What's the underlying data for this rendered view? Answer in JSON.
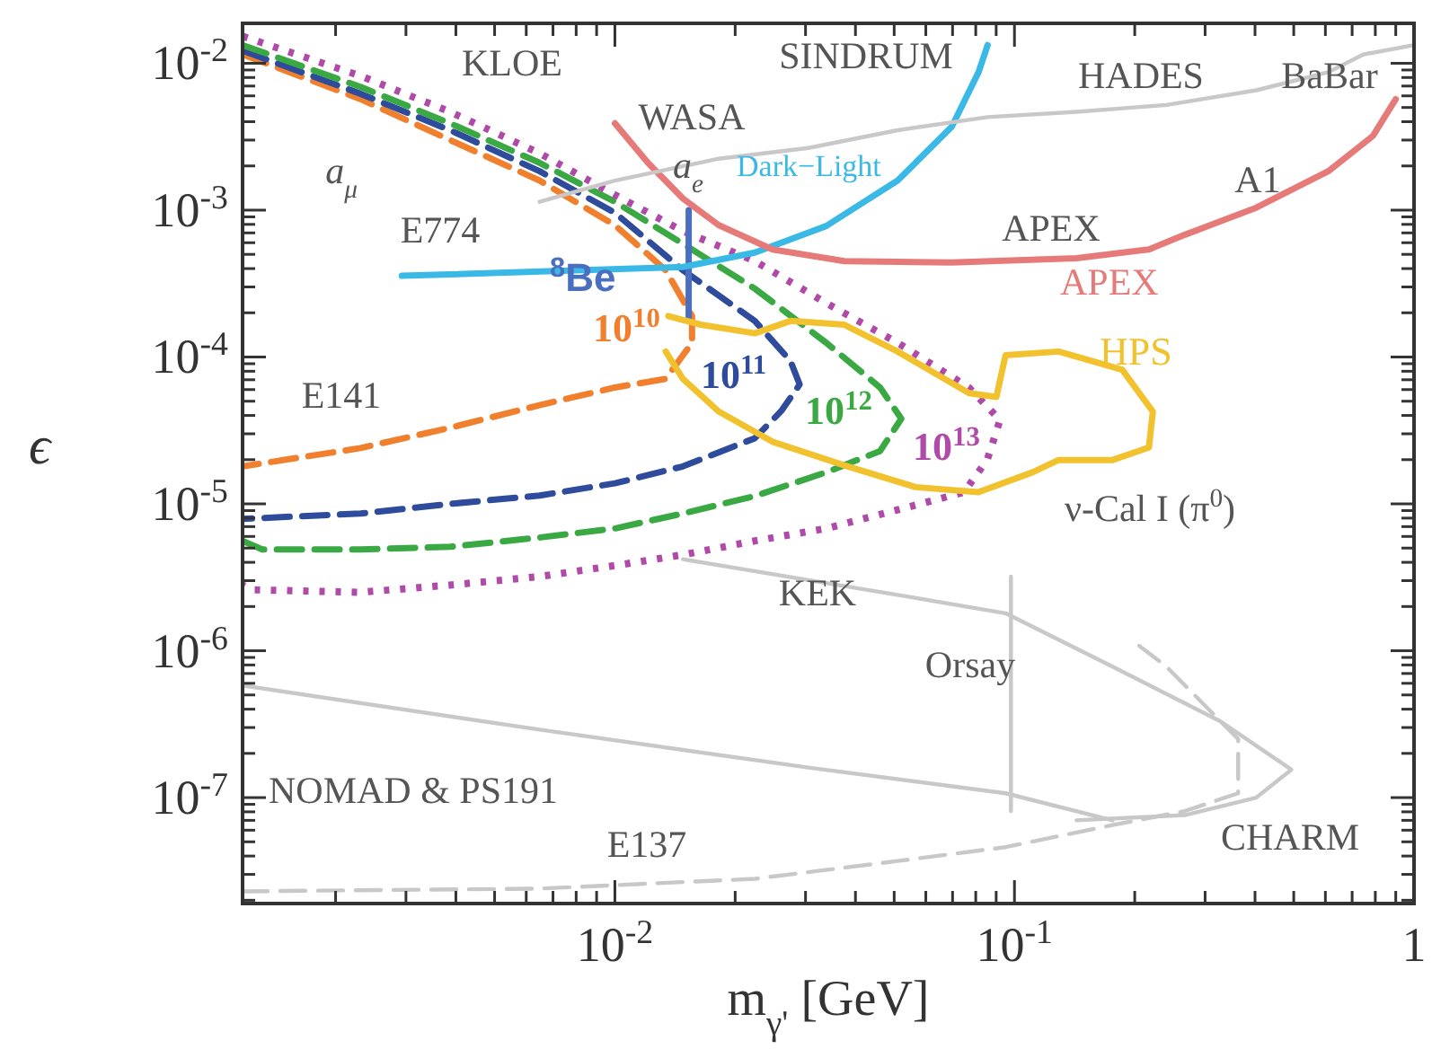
{
  "chart_data": {
    "type": "line",
    "xlabel": "m$_{γ'}$ [GeV]",
    "ylabel": "ϵ",
    "log": "xy",
    "grid": false,
    "xlim": [
      0.00117,
      1
    ],
    "ylim": [
      1.9e-08,
      0.0187
    ],
    "xticks": [
      {
        "value": 0.002,
        "label": null
      },
      {
        "value": 0.003,
        "label": null
      },
      {
        "value": 0.004,
        "label": null
      },
      {
        "value": 0.005,
        "label": null
      },
      {
        "value": 0.006,
        "label": null
      },
      {
        "value": 0.007,
        "label": null
      },
      {
        "value": 0.008,
        "label": null
      },
      {
        "value": 0.009,
        "label": null
      },
      {
        "value": 0.01,
        "label": "10$^{-2}$"
      },
      {
        "value": 0.02,
        "label": null
      },
      {
        "value": 0.03,
        "label": null
      },
      {
        "value": 0.04,
        "label": null
      },
      {
        "value": 0.05,
        "label": null
      },
      {
        "value": 0.06,
        "label": null
      },
      {
        "value": 0.07,
        "label": null
      },
      {
        "value": 0.08,
        "label": null
      },
      {
        "value": 0.09,
        "label": null
      },
      {
        "value": 0.1,
        "label": "10$^{-1}$"
      },
      {
        "value": 0.2,
        "label": null
      },
      {
        "value": 0.3,
        "label": null
      },
      {
        "value": 0.4,
        "label": null
      },
      {
        "value": 0.5,
        "label": null
      },
      {
        "value": 0.6,
        "label": null
      },
      {
        "value": 0.7,
        "label": null
      },
      {
        "value": 0.8,
        "label": null
      },
      {
        "value": 0.9,
        "label": null
      },
      1
    ],
    "yticks": [
      {
        "value": 2e-08,
        "label": null
      },
      {
        "value": 3e-08,
        "label": null
      },
      {
        "value": 4e-08,
        "label": null
      },
      {
        "value": 5e-08,
        "label": null
      },
      {
        "value": 6e-08,
        "label": null
      },
      {
        "value": 7e-08,
        "label": null
      },
      {
        "value": 8e-08,
        "label": null
      },
      {
        "value": 9e-08,
        "label": null
      },
      {
        "value": 1e-07,
        "label": "10$^{-7}$"
      },
      {
        "value": 2e-07,
        "label": null
      },
      {
        "value": 3e-07,
        "label": null
      },
      {
        "value": 4e-07,
        "label": null
      },
      {
        "value": 5e-07,
        "label": null
      },
      {
        "value": 6e-07,
        "label": null
      },
      {
        "value": 7e-07,
        "label": null
      },
      {
        "value": 8e-07,
        "label": null
      },
      {
        "value": 9e-07,
        "label": null
      },
      {
        "value": 1e-06,
        "label": "10$^{-6}$"
      },
      {
        "value": 2e-06,
        "label": null
      },
      {
        "value": 3e-06,
        "label": null
      },
      {
        "value": 4e-06,
        "label": null
      },
      {
        "value": 5e-06,
        "label": null
      },
      {
        "value": 6e-06,
        "label": null
      },
      {
        "value": 7e-06,
        "label": null
      },
      {
        "value": 8e-06,
        "label": null
      },
      {
        "value": 9e-06,
        "label": null
      },
      {
        "value": 1e-05,
        "label": "10$^{-5}$"
      },
      {
        "value": 2e-05,
        "label": null
      },
      {
        "value": 3e-05,
        "label": null
      },
      {
        "value": 4e-05,
        "label": null
      },
      {
        "value": 5e-05,
        "label": null
      },
      {
        "value": 6e-05,
        "label": null
      },
      {
        "value": 7e-05,
        "label": null
      },
      {
        "value": 8e-05,
        "label": null
      },
      {
        "value": 9e-05,
        "label": null
      },
      {
        "value": 0.0001,
        "label": "10$^{-4}$"
      },
      {
        "value": 0.0002,
        "label": null
      },
      {
        "value": 0.0003,
        "label": null
      },
      {
        "value": 0.0004,
        "label": null
      },
      {
        "value": 0.0005,
        "label": null
      },
      {
        "value": 0.0006,
        "label": null
      },
      {
        "value": 0.0007,
        "label": null
      },
      {
        "value": 0.0008,
        "label": null
      },
      {
        "value": 0.0009,
        "label": null
      },
      {
        "value": 0.001,
        "label": "10$^{-3}$"
      },
      {
        "value": 0.002,
        "label": null
      },
      {
        "value": 0.003,
        "label": null
      },
      {
        "value": 0.004,
        "label": null
      },
      {
        "value": 0.005,
        "label": null
      },
      {
        "value": 0.006,
        "label": null
      },
      {
        "value": 0.007,
        "label": null
      },
      {
        "value": 0.008,
        "label": null
      },
      {
        "value": 0.009,
        "label": null
      },
      {
        "value": 0.01,
        "label": "10$^{-2}$"
      }
    ],
    "series": [
      {
        "name": "10$^{10}$",
        "color": "#f07f2e",
        "line_style": "dashed",
        "x": [
          0.00117,
          0.00231,
          0.00387,
          0.00648,
          0.01,
          0.0134,
          0.0156,
          0.0156,
          0.0134,
          0.01,
          0.00648,
          0.00387,
          0.00231,
          0.00117
        ],
        "values": [
          0.0115,
          0.0057,
          0.003,
          0.00159,
          0.00079,
          0.00039,
          0.00019,
          0.000125,
          7.1e-05,
          6.2e-05,
          4.7e-05,
          3.3e-05,
          2.4e-05,
          1.8e-05
        ]
      },
      {
        "name": "10$^{11}$",
        "color": "#2e4b9c",
        "line_style": "dashed",
        "x": [
          0.00117,
          0.00231,
          0.00387,
          0.00648,
          0.01,
          0.0148,
          0.0224,
          0.0275,
          0.029,
          0.0261,
          0.0224,
          0.0148,
          0.01,
          0.00648,
          0.00387,
          0.00231,
          0.00117
        ],
        "values": [
          0.0122,
          0.0062,
          0.0035,
          0.00184,
          0.00096,
          0.00039,
          0.000176,
          9.4e-05,
          6.5e-05,
          4.3e-05,
          2.8e-05,
          1.8e-05,
          1.38e-05,
          1.14e-05,
          1e-05,
          8.6e-06,
          7.9e-06
        ]
      },
      {
        "name": "10$^{12}$",
        "color": "#3aa843",
        "line_style": "dashed",
        "x": [
          0.00117,
          0.00231,
          0.00387,
          0.00648,
          0.01,
          0.0148,
          0.0224,
          0.0338,
          0.0461,
          0.0521,
          0.0461,
          0.0338,
          0.0224,
          0.0148,
          0.01,
          0.00648,
          0.00387,
          0.00231,
          0.00131,
          0.00117
        ],
        "values": [
          0.0133,
          0.0069,
          0.0039,
          0.0021,
          0.00114,
          0.00059,
          0.000292,
          0.000125,
          6.2e-05,
          3.8e-05,
          2.29e-05,
          1.64e-05,
          1.13e-05,
          8.6e-06,
          6.8e-06,
          5.9e-06,
          5.1e-06,
          4.9e-06,
          4.9e-06,
          5.6e-06
        ]
      },
      {
        "name": "10$^{13}$",
        "color": "#b04aa8",
        "line_style": "dotted",
        "x": [
          0.00117,
          0.00231,
          0.00387,
          0.00648,
          0.01,
          0.0148,
          0.0224,
          0.0338,
          0.051,
          0.077,
          0.092,
          0.0855,
          0.0748,
          0.051,
          0.0338,
          0.0224,
          0.0148,
          0.01,
          0.00648,
          0.00387,
          0.00231,
          0.00124,
          0.00117
        ],
        "values": [
          0.0153,
          0.0082,
          0.00467,
          0.00244,
          0.00127,
          0.00072,
          0.00045,
          0.000233,
          0.000125,
          6.18e-05,
          3.72e-05,
          2e-05,
          1.2e-05,
          9.1e-06,
          6.8e-06,
          5.6e-06,
          4.5e-06,
          3.8e-06,
          3.2e-06,
          2.8e-06,
          2.5e-06,
          2.6e-06,
          2.8e-06
        ]
      },
      {
        "name": "$^{8}$Be",
        "color": "#4a6fc0",
        "line_style": "solid",
        "x": [
          0.0153,
          0.0153
        ],
        "values": [
          0.001,
          0.000176
        ]
      },
      {
        "name": "Dark−Light",
        "color": "#3ab8e6",
        "line_style": "solid",
        "x": [
          0.00293,
          0.0148,
          0.0224,
          0.0338,
          0.051,
          0.0697,
          0.0813,
          0.0857
        ],
        "values": [
          0.000357,
          0.00041,
          0.000514,
          0.00078,
          0.00159,
          0.0037,
          0.0087,
          0.0133
        ]
      },
      {
        "name": "APEX",
        "color": "#e67a78",
        "line_style": "solid",
        "x": [
          0.01,
          0.0121,
          0.0148,
          0.0182,
          0.0248,
          0.0375,
          0.0697,
          0.143,
          0.217,
          0.267,
          0.403,
          0.61,
          0.789,
          0.9
        ],
        "values": [
          0.0039,
          0.0021,
          0.0012,
          0.00079,
          0.00054,
          0.00045,
          0.00044,
          0.00047,
          0.00054,
          0.00068,
          0.00104,
          0.00184,
          0.0032,
          0.0057
        ]
      },
      {
        "name": "HPS",
        "color": "#f2c12e",
        "line_style": "solid",
        "x": [
          0.0136,
          0.0164,
          0.0224,
          0.0275,
          0.0375,
          0.051,
          0.077,
          0.0901,
          0.095,
          0.129,
          0.186,
          0.222,
          0.217,
          0.176,
          0.129,
          0.111,
          0.0812,
          0.0566,
          0.0375,
          0.0248,
          0.0182,
          0.0148,
          0.0134
        ],
        "values": [
          0.00019,
          0.000166,
          0.000145,
          0.000176,
          0.000166,
          0.000109,
          5.67e-05,
          5.35e-05,
          0.000103,
          0.000109,
          8.2e-05,
          4.25e-05,
          2.42e-05,
          1.99e-05,
          1.99e-05,
          1.64e-05,
          1.2e-05,
          1.3e-05,
          1.83e-05,
          2.65e-05,
          4.25e-05,
          7.1e-05,
          0.000109
        ]
      },
      {
        "color": "#c8c8c8",
        "line_style": "solid",
        "x": [
          0.00648,
          0.01,
          0.0182,
          0.0305,
          0.051,
          0.0857,
          0.143,
          0.24,
          0.403,
          0.61,
          0.748,
          1
        ],
        "values": [
          0.00114,
          0.00159,
          0.00224,
          0.00265,
          0.0035,
          0.0043,
          0.00467,
          0.0052,
          0.00655,
          0.0087,
          0.0115,
          0.0133
        ]
      },
      {
        "color": "#c8c8c8",
        "line_style": "solid",
        "x": [
          0.0148,
          0.051,
          0.095,
          0.176,
          0.328,
          0.493,
          0.403,
          0.267,
          0.143
        ],
        "values": [
          4.2e-06,
          2.4e-06,
          1.8e-06,
          7.8e-07,
          3.3e-07,
          1.55e-07,
          1e-07,
          7.6e-08,
          7e-08
        ]
      },
      {
        "color": "#c8c8c8",
        "line_style": "dashed",
        "x": [
          0.00117,
          0.00648,
          0.0224,
          0.051,
          0.095,
          0.176,
          0.267,
          0.363,
          0.363,
          0.24,
          0.195
        ],
        "values": [
          2.3e-08,
          2.4e-08,
          2.8e-08,
          3.7e-08,
          4.6e-08,
          6.5e-08,
          8.1e-08,
          1.07e-07,
          2.5e-07,
          7.8e-07,
          1.2e-06
        ]
      },
      {
        "color": "#c8c8c8",
        "line_style": "solid",
        "x": [
          0.098,
          0.098
        ],
        "values": [
          3.2e-06,
          8.1e-08
        ]
      },
      {
        "color": "#c8c8c8",
        "line_style": "solid",
        "x": [
          0.00117,
          0.00648,
          0.0305,
          0.095,
          0.176
        ],
        "values": [
          5.8e-07,
          2.9e-07,
          1.6e-07,
          1.07e-07,
          7e-08
        ]
      }
    ],
    "annotations": [
      "KLOE",
      "SINDRUM",
      "HADES",
      "BaBar",
      "WASA",
      "a$_{μ}$",
      "a$_{e}$",
      "A1",
      "E774",
      "APEX",
      "E141",
      "ν-Cal I (π$^{0}$)",
      "KEK",
      "Orsay",
      "NOMAD & PS191",
      "E137",
      "CHARM"
    ]
  }
}
